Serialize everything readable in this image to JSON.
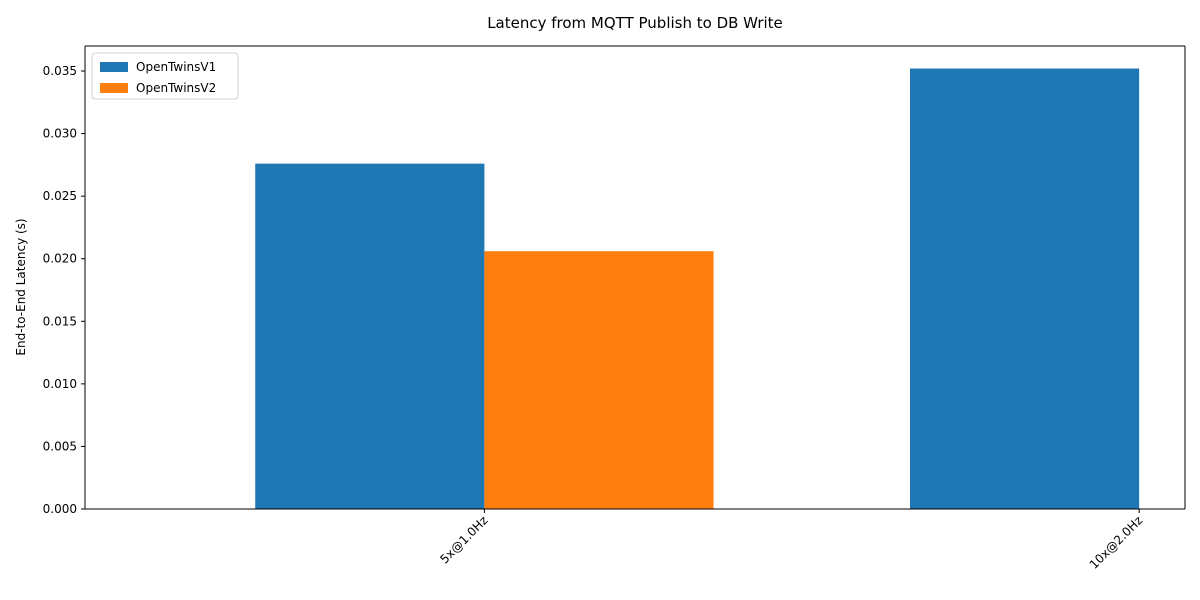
{
  "chart_data": {
    "type": "bar",
    "title": "Latency from MQTT Publish to DB Write",
    "xlabel": "",
    "ylabel": "End-to-End Latency (s)",
    "categories": [
      "5x@1.0Hz",
      "10x@2.0Hz"
    ],
    "series": [
      {
        "name": "OpenTwinsV1",
        "color": "#1f77b4",
        "values": [
          0.0276,
          0.0352
        ]
      },
      {
        "name": "OpenTwinsV2",
        "color": "#ff7f0e",
        "values": [
          0.0206,
          null
        ]
      }
    ],
    "ylim": [
      0,
      0.037
    ],
    "yticks": [
      0.0,
      0.005,
      0.01,
      0.015,
      0.02,
      0.025,
      0.03,
      0.035
    ],
    "ytick_labels": [
      "0.000",
      "0.005",
      "0.010",
      "0.015",
      "0.020",
      "0.025",
      "0.030",
      "0.035"
    ],
    "grid": false,
    "legend_position": "upper-left"
  }
}
